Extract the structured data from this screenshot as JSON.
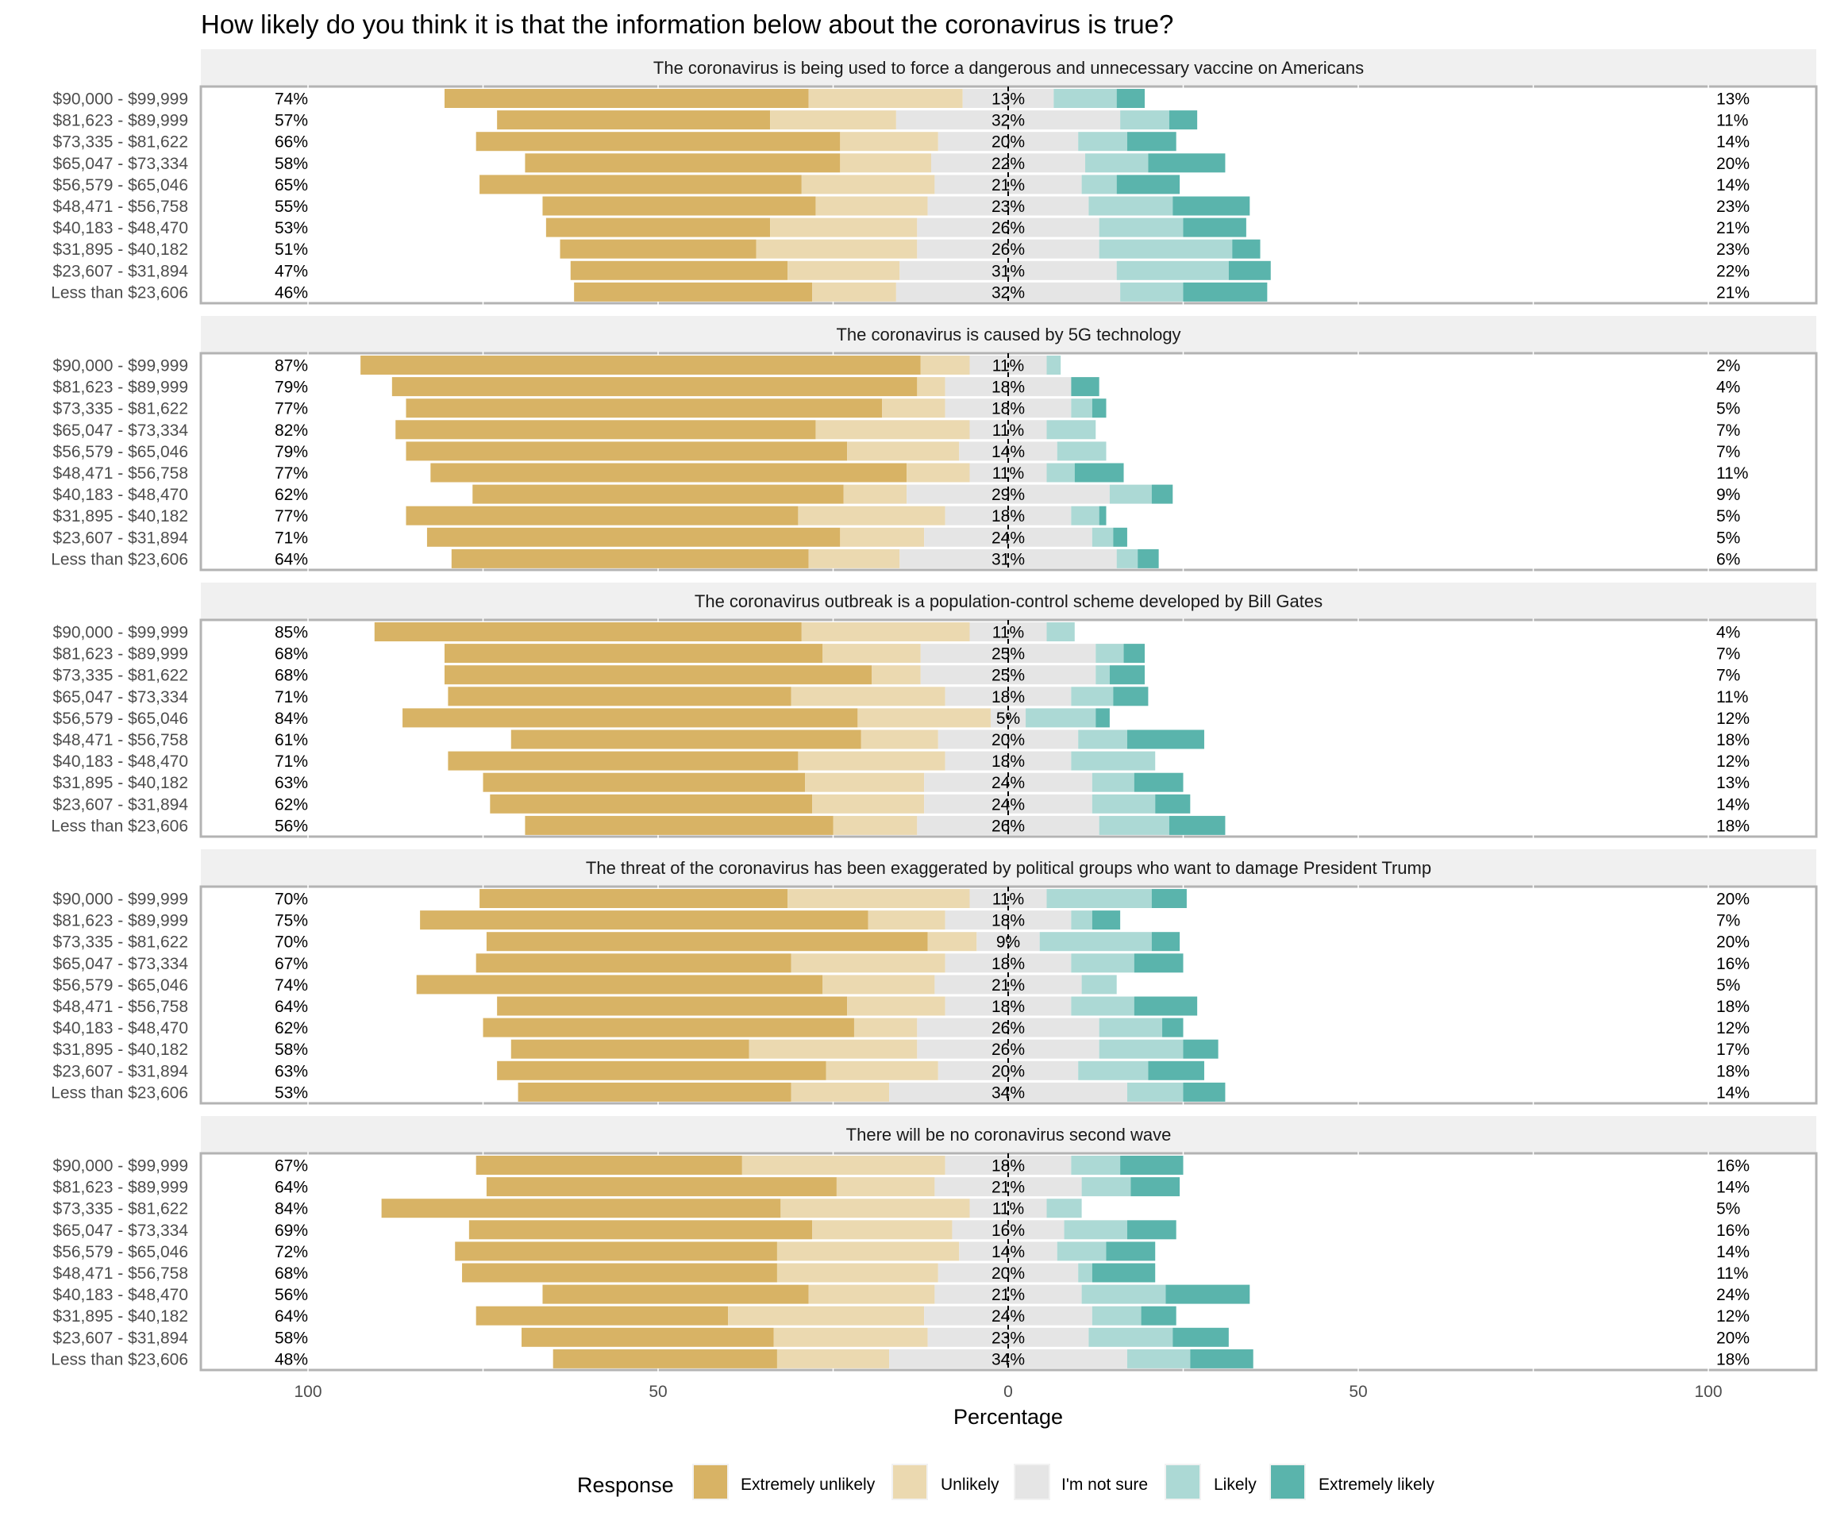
{
  "chart_data": {
    "type": "bar",
    "subtype": "diverging-stacked-horizontal",
    "title": "How likely do you think it is that the information below about the coronavirus is true?",
    "xlabel": "Percentage",
    "ylabel": "",
    "xlim": [
      -100,
      100
    ],
    "x_ticks": [
      -100,
      -50,
      0,
      50,
      100
    ],
    "x_tick_labels": [
      "100",
      "50",
      "0",
      "50",
      "100"
    ],
    "gridlines": [
      -100,
      -75,
      -50,
      -25,
      0,
      25,
      50,
      75,
      100
    ],
    "center_line": "dashed at 0",
    "legend": {
      "title": "Response",
      "placement": "bottom",
      "entries": [
        {
          "name": "Extremely unlikely",
          "color": "#d8b365"
        },
        {
          "name": "Unlikely",
          "color": "#ebd9b0"
        },
        {
          "name": "I'm not sure",
          "color": "#e5e5e5"
        },
        {
          "name": "Likely",
          "color": "#acd9d5"
        },
        {
          "name": "Extremely likely",
          "color": "#5ab4ac"
        }
      ]
    },
    "categories": [
      "$90,000 - $99,999",
      "$81,623 - $89,999",
      "$73,335 - $81,622",
      "$65,047 - $73,334",
      "$56,579 - $65,046",
      "$48,471 - $56,758",
      "$40,183 - $48,470",
      "$31,895 - $40,182",
      "$23,607 - $31,894",
      "Less than $23,606"
    ],
    "series_order": [
      "Extremely unlikely",
      "Unlikely",
      "I'm not sure",
      "Likely",
      "Extremely likely"
    ],
    "panels": [
      {
        "title": "The coronavirus is being used to force a dangerous and unnecessary vaccine on Americans",
        "rows": [
          {
            "values": [
              52,
              22,
              13,
              9,
              4
            ],
            "left_label": "74%",
            "center_label": "13%",
            "right_label": "13%"
          },
          {
            "values": [
              39,
              18,
              32,
              7,
              4
            ],
            "left_label": "57%",
            "center_label": "32%",
            "right_label": "11%"
          },
          {
            "values": [
              52,
              14,
              20,
              7,
              7
            ],
            "left_label": "66%",
            "center_label": "20%",
            "right_label": "14%"
          },
          {
            "values": [
              45,
              13,
              22,
              9,
              11
            ],
            "left_label": "58%",
            "center_label": "22%",
            "right_label": "20%"
          },
          {
            "values": [
              46,
              19,
              21,
              5,
              9
            ],
            "left_label": "65%",
            "center_label": "21%",
            "right_label": "14%"
          },
          {
            "values": [
              39,
              16,
              23,
              12,
              11
            ],
            "left_label": "55%",
            "center_label": "23%",
            "right_label": "23%"
          },
          {
            "values": [
              32,
              21,
              26,
              12,
              9
            ],
            "left_label": "53%",
            "center_label": "26%",
            "right_label": "21%"
          },
          {
            "values": [
              28,
              23,
              26,
              19,
              4
            ],
            "left_label": "51%",
            "center_label": "26%",
            "right_label": "23%"
          },
          {
            "values": [
              31,
              16,
              31,
              16,
              6
            ],
            "left_label": "47%",
            "center_label": "31%",
            "right_label": "22%"
          },
          {
            "values": [
              34,
              12,
              32,
              9,
              12
            ],
            "left_label": "46%",
            "center_label": "32%",
            "right_label": "21%"
          }
        ]
      },
      {
        "title": "The coronavirus is caused by 5G technology",
        "rows": [
          {
            "values": [
              80,
              7,
              11,
              2,
              0
            ],
            "left_label": "87%",
            "center_label": "11%",
            "right_label": "2%"
          },
          {
            "values": [
              75,
              4,
              18,
              0,
              4
            ],
            "left_label": "79%",
            "center_label": "18%",
            "right_label": "4%"
          },
          {
            "values": [
              68,
              9,
              18,
              3,
              2
            ],
            "left_label": "77%",
            "center_label": "18%",
            "right_label": "5%"
          },
          {
            "values": [
              60,
              22,
              11,
              7,
              0
            ],
            "left_label": "82%",
            "center_label": "11%",
            "right_label": "7%"
          },
          {
            "values": [
              63,
              16,
              14,
              7,
              0
            ],
            "left_label": "79%",
            "center_label": "14%",
            "right_label": "7%"
          },
          {
            "values": [
              68,
              9,
              11,
              4,
              7
            ],
            "left_label": "77%",
            "center_label": "11%",
            "right_label": "11%"
          },
          {
            "values": [
              53,
              9,
              29,
              6,
              3
            ],
            "left_label": "62%",
            "center_label": "29%",
            "right_label": "9%"
          },
          {
            "values": [
              56,
              21,
              18,
              4,
              1
            ],
            "left_label": "77%",
            "center_label": "18%",
            "right_label": "5%"
          },
          {
            "values": [
              59,
              12,
              24,
              3,
              2
            ],
            "left_label": "71%",
            "center_label": "24%",
            "right_label": "5%"
          },
          {
            "values": [
              51,
              13,
              31,
              3,
              3
            ],
            "left_label": "64%",
            "center_label": "31%",
            "right_label": "6%"
          }
        ]
      },
      {
        "title": "The coronavirus outbreak is a population-control scheme developed by Bill Gates",
        "rows": [
          {
            "values": [
              61,
              24,
              11,
              4,
              0
            ],
            "left_label": "85%",
            "center_label": "11%",
            "right_label": "4%"
          },
          {
            "values": [
              54,
              14,
              25,
              4,
              3
            ],
            "left_label": "68%",
            "center_label": "25%",
            "right_label": "7%"
          },
          {
            "values": [
              61,
              7,
              25,
              2,
              5
            ],
            "left_label": "68%",
            "center_label": "25%",
            "right_label": "7%"
          },
          {
            "values": [
              49,
              22,
              18,
              6,
              5
            ],
            "left_label": "71%",
            "center_label": "18%",
            "right_label": "11%"
          },
          {
            "values": [
              65,
              19,
              5,
              10,
              2
            ],
            "left_label": "84%",
            "center_label": "5%",
            "right_label": "12%"
          },
          {
            "values": [
              50,
              11,
              20,
              7,
              11
            ],
            "left_label": "61%",
            "center_label": "20%",
            "right_label": "18%"
          },
          {
            "values": [
              50,
              21,
              18,
              12,
              0
            ],
            "left_label": "71%",
            "center_label": "18%",
            "right_label": "12%"
          },
          {
            "values": [
              46,
              17,
              24,
              6,
              7
            ],
            "left_label": "63%",
            "center_label": "24%",
            "right_label": "13%"
          },
          {
            "values": [
              46,
              16,
              24,
              9,
              5
            ],
            "left_label": "62%",
            "center_label": "24%",
            "right_label": "14%"
          },
          {
            "values": [
              44,
              12,
              26,
              10,
              8
            ],
            "left_label": "56%",
            "center_label": "26%",
            "right_label": "18%"
          }
        ]
      },
      {
        "title": "The threat of the coronavirus has been exaggerated by political groups who want to damage President Trump",
        "rows": [
          {
            "values": [
              44,
              26,
              11,
              15,
              5
            ],
            "left_label": "70%",
            "center_label": "11%",
            "right_label": "20%"
          },
          {
            "values": [
              64,
              11,
              18,
              3,
              4
            ],
            "left_label": "75%",
            "center_label": "18%",
            "right_label": "7%"
          },
          {
            "values": [
              63,
              7,
              9,
              16,
              4
            ],
            "left_label": "70%",
            "center_label": "9%",
            "right_label": "20%"
          },
          {
            "values": [
              45,
              22,
              18,
              9,
              7
            ],
            "left_label": "67%",
            "center_label": "18%",
            "right_label": "16%"
          },
          {
            "values": [
              58,
              16,
              21,
              5,
              0
            ],
            "left_label": "74%",
            "center_label": "21%",
            "right_label": "5%"
          },
          {
            "values": [
              50,
              14,
              18,
              9,
              9
            ],
            "left_label": "64%",
            "center_label": "18%",
            "right_label": "18%"
          },
          {
            "values": [
              53,
              9,
              26,
              9,
              3
            ],
            "left_label": "62%",
            "center_label": "26%",
            "right_label": "12%"
          },
          {
            "values": [
              34,
              24,
              26,
              12,
              5
            ],
            "left_label": "58%",
            "center_label": "26%",
            "right_label": "17%"
          },
          {
            "values": [
              47,
              16,
              20,
              10,
              8
            ],
            "left_label": "63%",
            "center_label": "20%",
            "right_label": "18%"
          },
          {
            "values": [
              39,
              14,
              34,
              8,
              6
            ],
            "left_label": "53%",
            "center_label": "34%",
            "right_label": "14%"
          }
        ]
      },
      {
        "title": "There will be no coronavirus second wave",
        "rows": [
          {
            "values": [
              38,
              29,
              18,
              7,
              9
            ],
            "left_label": "67%",
            "center_label": "18%",
            "right_label": "16%"
          },
          {
            "values": [
              50,
              14,
              21,
              7,
              7
            ],
            "left_label": "64%",
            "center_label": "21%",
            "right_label": "14%"
          },
          {
            "values": [
              57,
              27,
              11,
              5,
              0
            ],
            "left_label": "84%",
            "center_label": "11%",
            "right_label": "5%"
          },
          {
            "values": [
              49,
              20,
              16,
              9,
              7
            ],
            "left_label": "69%",
            "center_label": "16%",
            "right_label": "16%"
          },
          {
            "values": [
              46,
              26,
              14,
              7,
              7
            ],
            "left_label": "72%",
            "center_label": "14%",
            "right_label": "14%"
          },
          {
            "values": [
              45,
              23,
              20,
              2,
              9
            ],
            "left_label": "68%",
            "center_label": "20%",
            "right_label": "11%"
          },
          {
            "values": [
              38,
              18,
              21,
              12,
              12
            ],
            "left_label": "56%",
            "center_label": "21%",
            "right_label": "24%"
          },
          {
            "values": [
              36,
              28,
              24,
              7,
              5
            ],
            "left_label": "64%",
            "center_label": "24%",
            "right_label": "12%"
          },
          {
            "values": [
              36,
              22,
              23,
              12,
              8
            ],
            "left_label": "58%",
            "center_label": "23%",
            "right_label": "20%"
          },
          {
            "values": [
              32,
              16,
              34,
              9,
              9
            ],
            "left_label": "48%",
            "center_label": "34%",
            "right_label": "18%"
          }
        ]
      }
    ]
  }
}
